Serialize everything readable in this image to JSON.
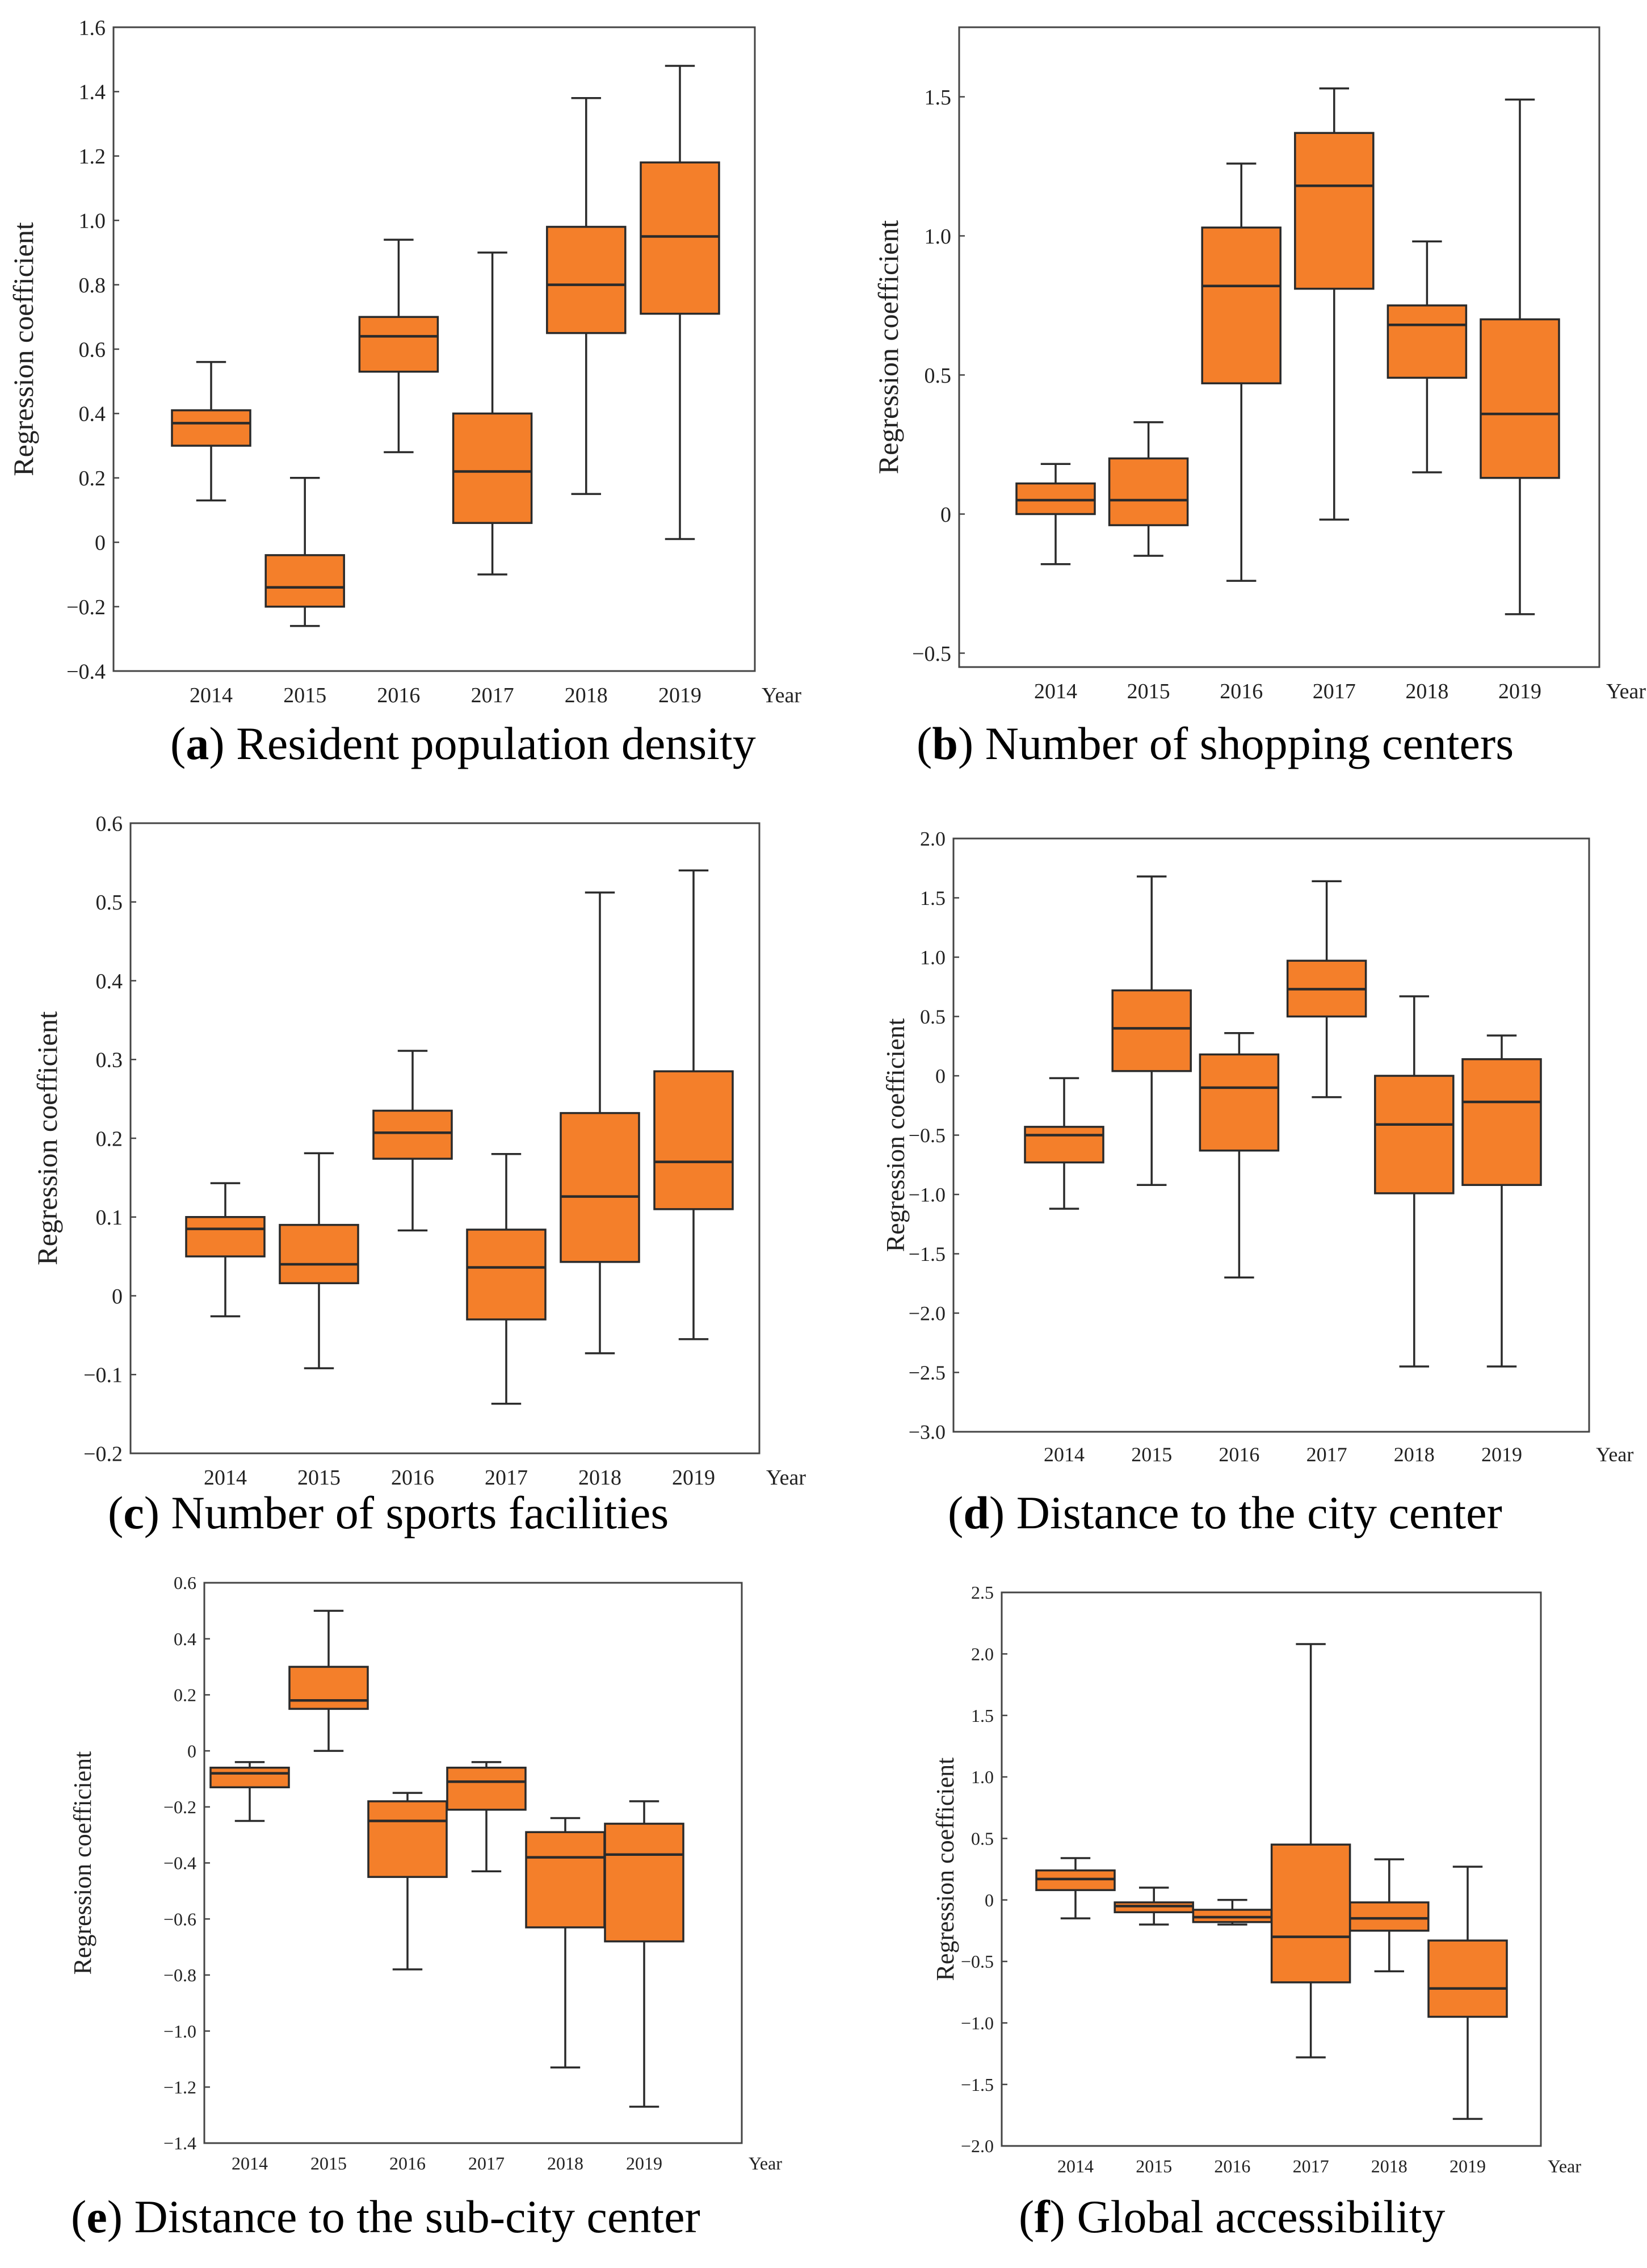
{
  "chart_data": [
    {
      "type": "boxplot",
      "id": "a",
      "letter": "a",
      "caption": " Resident population density",
      "ylabel": "Regression coefficient",
      "xlabel": "Year",
      "ylim": [
        -0.4,
        1.6
      ],
      "yticks": [
        -0.4,
        -0.2,
        0,
        0.2,
        0.4,
        0.6,
        0.8,
        1.0,
        1.2,
        1.4,
        1.6
      ],
      "ytick_labels": [
        "−0.4",
        "−0.2",
        "0",
        "0.2",
        "0.4",
        "0.6",
        "0.8",
        "1.0",
        "1.2",
        "1.4",
        "1.6"
      ],
      "categories": [
        "2014",
        "2015",
        "2016",
        "2017",
        "2018",
        "2019"
      ],
      "boxes": [
        {
          "min": 0.13,
          "q1": 0.3,
          "median": 0.37,
          "q3": 0.41,
          "max": 0.56
        },
        {
          "min": -0.26,
          "q1": -0.2,
          "median": -0.14,
          "q3": -0.04,
          "max": 0.2
        },
        {
          "min": 0.28,
          "q1": 0.53,
          "median": 0.64,
          "q3": 0.7,
          "max": 0.94
        },
        {
          "min": -0.1,
          "q1": 0.06,
          "median": 0.22,
          "q3": 0.4,
          "max": 0.9
        },
        {
          "min": 0.15,
          "q1": 0.65,
          "median": 0.8,
          "q3": 0.98,
          "max": 1.38
        },
        {
          "min": 0.01,
          "q1": 0.71,
          "median": 0.95,
          "q3": 1.18,
          "max": 1.48
        }
      ]
    },
    {
      "type": "boxplot",
      "id": "b",
      "letter": "b",
      "caption": " Number of shopping centers",
      "ylabel": "Regression coefficient",
      "xlabel": "Year",
      "ylim": [
        -0.55,
        1.75
      ],
      "yticks": [
        -0.5,
        0,
        0.5,
        1.0,
        1.5
      ],
      "ytick_labels": [
        "−0.5",
        "0",
        "0.5",
        "1.0",
        "1.5"
      ],
      "categories": [
        "2014",
        "2015",
        "2016",
        "2017",
        "2018",
        "2019"
      ],
      "boxes": [
        {
          "min": -0.18,
          "q1": 0.0,
          "median": 0.05,
          "q3": 0.11,
          "max": 0.18
        },
        {
          "min": -0.15,
          "q1": -0.04,
          "median": 0.05,
          "q3": 0.2,
          "max": 0.33
        },
        {
          "min": -0.24,
          "q1": 0.47,
          "median": 0.82,
          "q3": 1.03,
          "max": 1.26
        },
        {
          "min": -0.02,
          "q1": 0.81,
          "median": 1.18,
          "q3": 1.37,
          "max": 1.53
        },
        {
          "min": 0.15,
          "q1": 0.49,
          "median": 0.68,
          "q3": 0.75,
          "max": 0.98
        },
        {
          "min": -0.36,
          "q1": 0.13,
          "median": 0.36,
          "q3": 0.7,
          "max": 1.49
        }
      ]
    },
    {
      "type": "boxplot",
      "id": "c",
      "letter": "c",
      "caption": " Number of sports facilities",
      "ylabel": "Regression coefficient",
      "xlabel": "Year",
      "ylim": [
        -0.2,
        0.6
      ],
      "yticks": [
        -0.2,
        -0.1,
        0,
        0.1,
        0.2,
        0.3,
        0.4,
        0.5,
        0.6
      ],
      "ytick_labels": [
        "−0.2",
        "−0.1",
        "0",
        "0.1",
        "0.2",
        "0.3",
        "0.4",
        "0.5",
        "0.6"
      ],
      "categories": [
        "2014",
        "2015",
        "2016",
        "2017",
        "2018",
        "2019"
      ],
      "boxes": [
        {
          "min": -0.026,
          "q1": 0.05,
          "median": 0.085,
          "q3": 0.1,
          "max": 0.143
        },
        {
          "min": -0.092,
          "q1": 0.016,
          "median": 0.04,
          "q3": 0.09,
          "max": 0.181
        },
        {
          "min": 0.083,
          "q1": 0.174,
          "median": 0.207,
          "q3": 0.235,
          "max": 0.311
        },
        {
          "min": -0.137,
          "q1": -0.03,
          "median": 0.036,
          "q3": 0.084,
          "max": 0.18
        },
        {
          "min": -0.073,
          "q1": 0.043,
          "median": 0.126,
          "q3": 0.232,
          "max": 0.512
        },
        {
          "min": -0.055,
          "q1": 0.11,
          "median": 0.17,
          "q3": 0.285,
          "max": 0.54
        }
      ]
    },
    {
      "type": "boxplot",
      "id": "d",
      "letter": "d",
      "caption": " Distance to the city center",
      "ylabel": "Regression coefficient",
      "xlabel": "Year",
      "ylim": [
        -3.0,
        2.0
      ],
      "yticks": [
        -3.0,
        -2.5,
        -2.0,
        -1.5,
        -1.0,
        -0.5,
        0,
        0.5,
        1.0,
        1.5,
        2.0
      ],
      "ytick_labels": [
        "−3.0",
        "−2.5",
        "−2.0",
        "−1.5",
        "−1.0",
        "−0.5",
        "0",
        "0.5",
        "1.0",
        "1.5",
        "2.0"
      ],
      "categories": [
        "2014",
        "2015",
        "2016",
        "2017",
        "2018",
        "2019"
      ],
      "boxes": [
        {
          "min": -1.12,
          "q1": -0.73,
          "median": -0.5,
          "q3": -0.43,
          "max": -0.02
        },
        {
          "min": -0.92,
          "q1": 0.04,
          "median": 0.4,
          "q3": 0.72,
          "max": 1.68
        },
        {
          "min": -1.7,
          "q1": -0.63,
          "median": -0.1,
          "q3": 0.18,
          "max": 0.36
        },
        {
          "min": -0.18,
          "q1": 0.5,
          "median": 0.73,
          "q3": 0.97,
          "max": 1.64
        },
        {
          "min": -2.45,
          "q1": -0.99,
          "median": -0.41,
          "q3": 0.0,
          "max": 0.67
        },
        {
          "min": -2.45,
          "q1": -0.92,
          "median": -0.22,
          "q3": 0.14,
          "max": 0.34
        }
      ]
    },
    {
      "type": "boxplot",
      "id": "e",
      "letter": "e",
      "caption": " Distance to the sub-city center",
      "ylabel": "Regression coefficient",
      "xlabel": "Year",
      "ylim": [
        -1.4,
        0.6
      ],
      "yticks": [
        -1.4,
        -1.2,
        -1.0,
        -0.8,
        -0.6,
        -0.4,
        -0.2,
        0,
        0.2,
        0.4,
        0.6
      ],
      "ytick_labels": [
        "−1.4",
        "−1.2",
        "−1.0",
        "−0.8",
        "−0.6",
        "−0.4",
        "−0.2",
        "0",
        "0.2",
        "0.4",
        "0.6"
      ],
      "categories": [
        "2014",
        "2015",
        "2016",
        "2017",
        "2018",
        "2019"
      ],
      "boxes": [
        {
          "min": -0.25,
          "q1": -0.13,
          "median": -0.08,
          "q3": -0.06,
          "max": -0.04
        },
        {
          "min": 0.0,
          "q1": 0.15,
          "median": 0.18,
          "q3": 0.3,
          "max": 0.5
        },
        {
          "min": -0.78,
          "q1": -0.45,
          "median": -0.25,
          "q3": -0.18,
          "max": -0.15
        },
        {
          "min": -0.43,
          "q1": -0.21,
          "median": -0.11,
          "q3": -0.06,
          "max": -0.04
        },
        {
          "min": -1.13,
          "q1": -0.63,
          "median": -0.38,
          "q3": -0.29,
          "max": -0.24
        },
        {
          "min": -1.27,
          "q1": -0.68,
          "median": -0.37,
          "q3": -0.26,
          "max": -0.18
        }
      ]
    },
    {
      "type": "boxplot",
      "id": "f",
      "letter": "f",
      "caption": " Global accessibility",
      "ylabel": "Regression coefficient",
      "xlabel": "Year",
      "ylim": [
        -2.0,
        2.5
      ],
      "yticks": [
        -2.0,
        -1.5,
        -1.0,
        -0.5,
        0,
        0.5,
        1.0,
        1.5,
        2.0,
        2.5
      ],
      "ytick_labels": [
        "−2.0",
        "−1.5",
        "−1.0",
        "−0.5",
        "0",
        "0.5",
        "1.0",
        "1.5",
        "2.0",
        "2.5"
      ],
      "categories": [
        "2014",
        "2015",
        "2016",
        "2017",
        "2018",
        "2019"
      ],
      "boxes": [
        {
          "min": -0.15,
          "q1": 0.08,
          "median": 0.17,
          "q3": 0.24,
          "max": 0.34
        },
        {
          "min": -0.2,
          "q1": -0.1,
          "median": -0.05,
          "q3": -0.02,
          "max": 0.1
        },
        {
          "min": -0.2,
          "q1": -0.18,
          "median": -0.14,
          "q3": -0.08,
          "max": 0.0
        },
        {
          "min": -1.28,
          "q1": -0.67,
          "median": -0.3,
          "q3": 0.45,
          "max": 2.08
        },
        {
          "min": -0.58,
          "q1": -0.25,
          "median": -0.15,
          "q3": -0.02,
          "max": 0.33
        },
        {
          "min": -1.78,
          "q1": -0.95,
          "median": -0.72,
          "q3": -0.33,
          "max": 0.27
        }
      ]
    }
  ],
  "style": {
    "box_fill": "#F47F2A",
    "box_stroke": "#2a2a2a",
    "axis_color": "#444444",
    "text_color": "#222222"
  }
}
